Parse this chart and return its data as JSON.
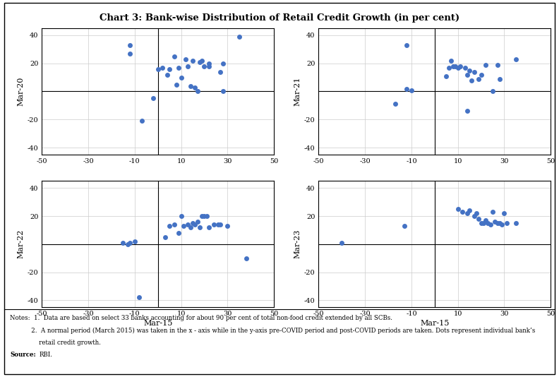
{
  "title": "Chart 3: Bank-wise Distribution of Retail Credit Growth (in per cent)",
  "dot_color": "#4472C4",
  "dot_size": 25,
  "xlim": [
    -50,
    50
  ],
  "ylim": [
    -45,
    45
  ],
  "xticks": [
    -50,
    -30,
    -10,
    10,
    30,
    50
  ],
  "yticks": [
    -40,
    -20,
    0,
    20,
    40
  ],
  "xlabel": "Mar-15",
  "subplots": [
    {
      "ylabel": "Mar-20",
      "data": [
        [
          -12,
          33
        ],
        [
          -12,
          27
        ],
        [
          0,
          16
        ],
        [
          2,
          17
        ],
        [
          4,
          12
        ],
        [
          5,
          16
        ],
        [
          7,
          25
        ],
        [
          8,
          5
        ],
        [
          9,
          17
        ],
        [
          10,
          10
        ],
        [
          12,
          23
        ],
        [
          13,
          18
        ],
        [
          14,
          4
        ],
        [
          15,
          22
        ],
        [
          16,
          3
        ],
        [
          17,
          0
        ],
        [
          18,
          21
        ],
        [
          19,
          22
        ],
        [
          20,
          18
        ],
        [
          22,
          20
        ],
        [
          22,
          18
        ],
        [
          27,
          14
        ],
        [
          28,
          20
        ],
        [
          28,
          0
        ],
        [
          35,
          39
        ],
        [
          -2,
          -5
        ],
        [
          -7,
          -21
        ]
      ]
    },
    {
      "ylabel": "Mar-21",
      "data": [
        [
          -12,
          33
        ],
        [
          -17,
          -9
        ],
        [
          -12,
          2
        ],
        [
          -10,
          1
        ],
        [
          5,
          11
        ],
        [
          6,
          17
        ],
        [
          7,
          22
        ],
        [
          8,
          18
        ],
        [
          9,
          18
        ],
        [
          10,
          17
        ],
        [
          11,
          18
        ],
        [
          13,
          17
        ],
        [
          14,
          12
        ],
        [
          15,
          15
        ],
        [
          16,
          8
        ],
        [
          17,
          14
        ],
        [
          19,
          9
        ],
        [
          20,
          12
        ],
        [
          22,
          19
        ],
        [
          25,
          0
        ],
        [
          27,
          19
        ],
        [
          28,
          9
        ],
        [
          35,
          23
        ],
        [
          14,
          -14
        ]
      ]
    },
    {
      "ylabel": "Mar-22",
      "data": [
        [
          -15,
          1
        ],
        [
          -13,
          0
        ],
        [
          -12,
          1
        ],
        [
          -10,
          2
        ],
        [
          3,
          5
        ],
        [
          5,
          13
        ],
        [
          7,
          14
        ],
        [
          9,
          8
        ],
        [
          10,
          20
        ],
        [
          11,
          13
        ],
        [
          13,
          14
        ],
        [
          14,
          12
        ],
        [
          15,
          15
        ],
        [
          16,
          14
        ],
        [
          17,
          16
        ],
        [
          18,
          12
        ],
        [
          19,
          20
        ],
        [
          20,
          20
        ],
        [
          21,
          20
        ],
        [
          22,
          12
        ],
        [
          24,
          14
        ],
        [
          26,
          14
        ],
        [
          27,
          14
        ],
        [
          30,
          13
        ],
        [
          38,
          -10
        ],
        [
          -8,
          -38
        ]
      ]
    },
    {
      "ylabel": "Mar-23",
      "data": [
        [
          -40,
          1
        ],
        [
          -13,
          13
        ],
        [
          10,
          25
        ],
        [
          12,
          23
        ],
        [
          14,
          22
        ],
        [
          15,
          24
        ],
        [
          17,
          20
        ],
        [
          18,
          22
        ],
        [
          19,
          18
        ],
        [
          20,
          15
        ],
        [
          21,
          15
        ],
        [
          22,
          17
        ],
        [
          23,
          15
        ],
        [
          24,
          14
        ],
        [
          25,
          23
        ],
        [
          26,
          16
        ],
        [
          27,
          15
        ],
        [
          28,
          15
        ],
        [
          29,
          14
        ],
        [
          30,
          22
        ],
        [
          31,
          15
        ],
        [
          35,
          15
        ]
      ]
    }
  ],
  "notes_line1": "Notes:  1.  Data are based on select 33 banks accounting for about 90 per cent of total non-food credit extended by all SCBs.",
  "notes_line2": "           2.  A normal period (March 2015) was taken in the x - axis while in the y-axis pre-COVID period and post-COVID periods are taken. Dots represent individual bank’s",
  "notes_line3": "               retail credit growth.",
  "source_label": "Source:",
  "source_value": "RBI."
}
